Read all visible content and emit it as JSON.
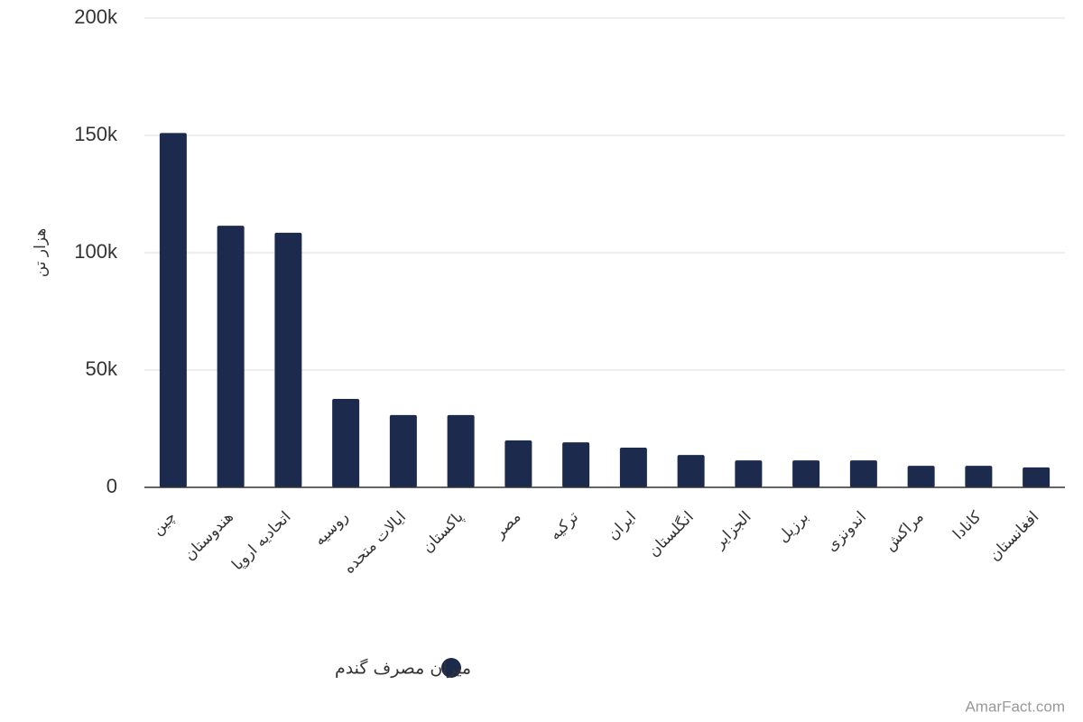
{
  "chart_data": {
    "type": "bar",
    "y_axis_label": "هزار تن",
    "categories": [
      "چین",
      "هندوستان",
      "اتحادیه اروپا",
      "روسیه",
      "ایالات متحده",
      "پاکستان",
      "مصر",
      "ترکیه",
      "ایران",
      "انگلستان",
      "الجزایر",
      "برزیل",
      "اندونزی",
      "مراکش",
      "کانادا",
      "افغانستان"
    ],
    "series": [
      {
        "name": "میزان مصرف گندم",
        "color": "#1c2a4e",
        "values": [
          151000,
          111500,
          108500,
          37700,
          30800,
          30800,
          20000,
          19200,
          16900,
          13800,
          11500,
          11500,
          11500,
          9200,
          9200,
          8500
        ]
      }
    ],
    "ylim": [
      0,
      200000
    ],
    "yticks": [
      {
        "value": 0,
        "label": "0"
      },
      {
        "value": 50000,
        "label": "50k"
      },
      {
        "value": 100000,
        "label": "100k"
      },
      {
        "value": 150000,
        "label": "150k"
      },
      {
        "value": 200000,
        "label": "200k"
      }
    ],
    "grid": true,
    "watermark": "AmarFact.com"
  }
}
